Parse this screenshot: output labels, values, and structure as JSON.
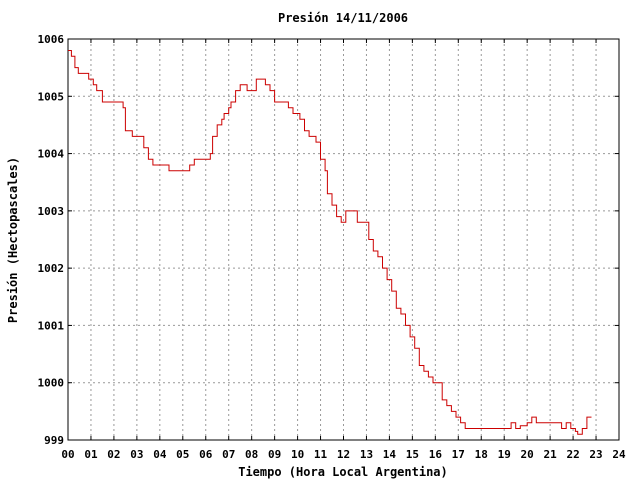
{
  "chart_data": {
    "type": "line",
    "title": "Presión 14/11/2006",
    "xlabel": "Tiempo (Hora Local Argentina)",
    "ylabel": "Presión (Hectopascales)",
    "xlim": [
      0,
      24
    ],
    "ylim": [
      999,
      1006
    ],
    "grid": true,
    "x_ticks": [
      "00",
      "01",
      "02",
      "03",
      "04",
      "05",
      "06",
      "07",
      "08",
      "09",
      "10",
      "11",
      "12",
      "13",
      "14",
      "15",
      "16",
      "17",
      "18",
      "19",
      "20",
      "21",
      "22",
      "23",
      "24"
    ],
    "y_ticks": [
      "999",
      "1000",
      "1001",
      "1002",
      "1003",
      "1004",
      "1005",
      "1006"
    ],
    "colors": {
      "series": "#cc0000",
      "grid": "#999999",
      "frame": "#000000"
    },
    "series": [
      {
        "x": [
          0.0,
          0.15,
          0.3,
          0.45,
          0.6,
          0.9,
          1.1,
          1.25,
          1.5,
          1.8,
          2.0,
          2.4,
          2.5,
          2.8,
          3.0,
          3.3,
          3.5,
          3.7,
          4.0,
          4.4,
          4.5,
          5.0,
          5.3,
          5.5,
          5.8,
          6.0,
          6.2,
          6.3,
          6.5,
          6.7,
          6.8,
          7.0,
          7.1,
          7.3,
          7.5,
          7.8,
          8.0,
          8.2,
          8.4,
          8.6,
          8.8,
          9.0,
          9.2,
          9.6,
          9.8,
          10.1,
          10.3,
          10.5,
          10.8,
          11.0,
          11.2,
          11.3,
          11.5,
          11.7,
          11.9,
          12.1,
          12.4,
          12.6,
          12.9,
          13.1,
          13.3,
          13.5,
          13.7,
          13.9,
          14.1,
          14.3,
          14.5,
          14.7,
          14.9,
          15.1,
          15.3,
          15.5,
          15.7,
          15.9,
          16.1,
          16.3,
          16.5,
          16.7,
          16.9,
          17.1,
          17.3,
          17.5,
          17.7,
          18.0,
          18.5,
          19.0,
          19.3,
          19.5,
          19.7,
          20.0,
          20.2,
          20.4,
          20.6,
          20.8,
          21.0,
          21.3,
          21.5,
          21.7,
          21.9,
          22.1,
          22.2,
          22.4,
          22.6,
          22.8
        ],
        "values": [
          1005.8,
          1005.7,
          1005.5,
          1005.4,
          1005.4,
          1005.3,
          1005.2,
          1005.1,
          1004.9,
          1004.9,
          1004.9,
          1004.8,
          1004.4,
          1004.3,
          1004.3,
          1004.1,
          1003.9,
          1003.8,
          1003.8,
          1003.7,
          1003.7,
          1003.7,
          1003.8,
          1003.9,
          1003.9,
          1003.9,
          1004.0,
          1004.3,
          1004.5,
          1004.6,
          1004.7,
          1004.8,
          1004.9,
          1005.1,
          1005.2,
          1005.1,
          1005.1,
          1005.3,
          1005.3,
          1005.2,
          1005.1,
          1004.9,
          1004.9,
          1004.8,
          1004.7,
          1004.6,
          1004.4,
          1004.3,
          1004.2,
          1003.9,
          1003.7,
          1003.3,
          1003.1,
          1002.9,
          1002.8,
          1003.0,
          1003.0,
          1002.8,
          1002.8,
          1002.5,
          1002.3,
          1002.2,
          1002.0,
          1001.8,
          1001.6,
          1001.3,
          1001.2,
          1001.0,
          1000.8,
          1000.6,
          1000.3,
          1000.2,
          1000.1,
          1000.0,
          1000.0,
          999.7,
          999.6,
          999.5,
          999.4,
          999.3,
          999.2,
          999.2,
          999.2,
          999.2,
          999.2,
          999.2,
          999.3,
          999.2,
          999.25,
          999.3,
          999.4,
          999.3,
          999.3,
          999.3,
          999.3,
          999.3,
          999.2,
          999.3,
          999.2,
          999.15,
          999.1,
          999.2,
          999.4,
          999.4
        ]
      }
    ]
  }
}
